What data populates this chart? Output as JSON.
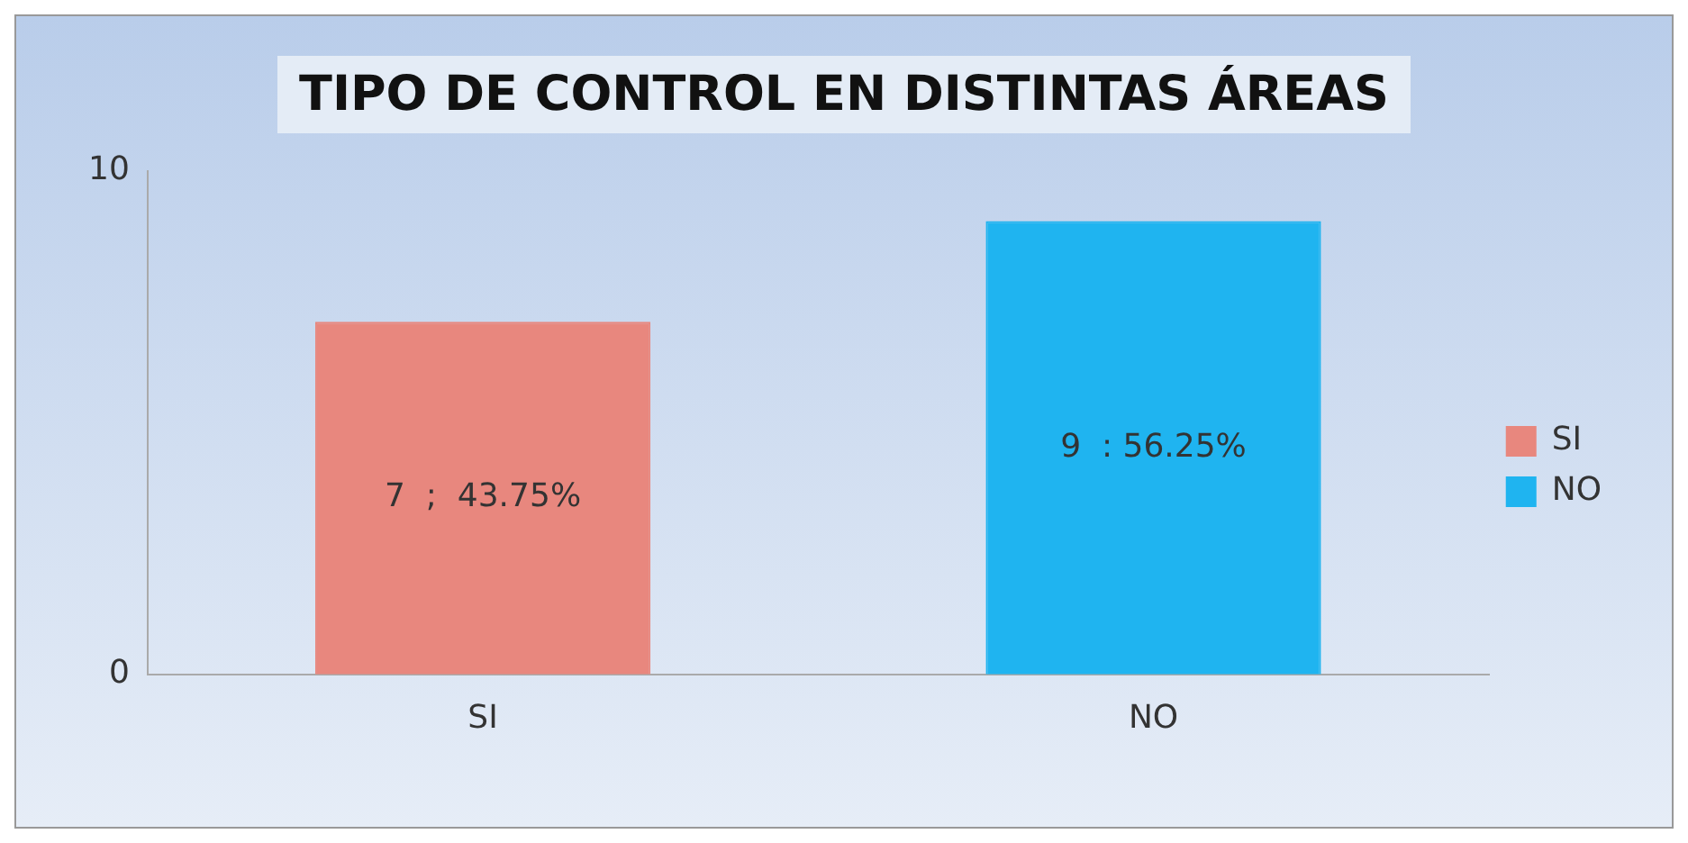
{
  "chart_data": {
    "type": "bar",
    "title": "TIPO DE CONTROL EN DISTINTAS ÁREAS",
    "categories": [
      "SI",
      "NO"
    ],
    "series": [
      {
        "name": "SI",
        "color": "#e8877e",
        "values": [
          7,
          null
        ],
        "value_labels": [
          "7  ;  43.75%",
          null
        ]
      },
      {
        "name": "NO",
        "color": "#1fb4f0",
        "values": [
          null,
          9
        ],
        "value_labels": [
          null,
          "9  : 56.25%"
        ]
      }
    ],
    "ylim": [
      0,
      10
    ],
    "yticks": [
      0,
      10
    ],
    "grid": false,
    "legend": "right"
  }
}
